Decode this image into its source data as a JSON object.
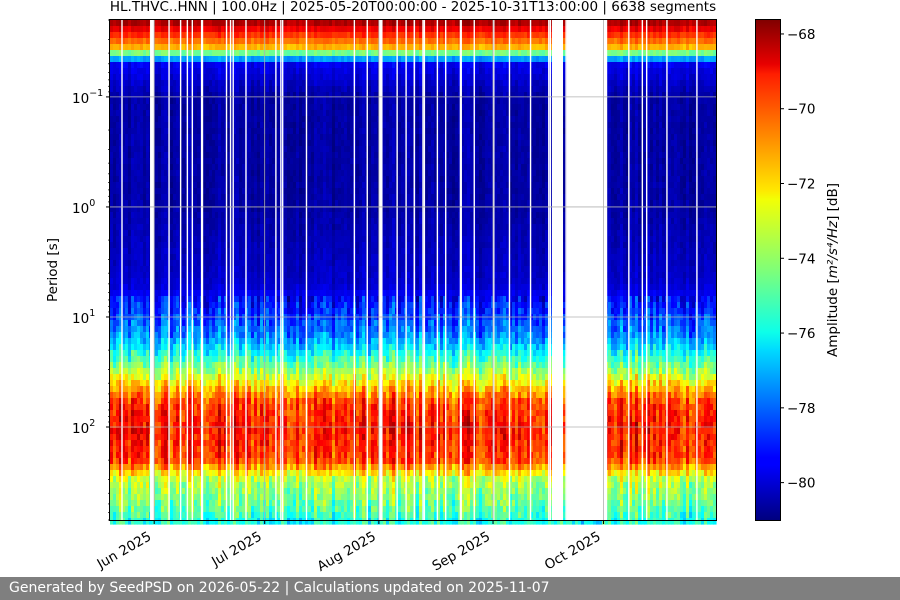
{
  "chart_data": {
    "type": "heatmap",
    "title": "HL.THVC..HNN | 100.0Hz | 2025-05-20T00:00:00 - 2025-10-31T13:00:00 | 6638 segments",
    "xlabel": "",
    "ylabel": "Period [s]",
    "x_range": [
      "2025-05-20",
      "2025-10-31"
    ],
    "y_range": [
      0.02,
      700
    ],
    "y_scale": "log",
    "y_inverted": true,
    "y_ticks": [
      {
        "value": 0.1,
        "base": "10",
        "exp": "−1"
      },
      {
        "value": 1,
        "base": "10",
        "exp": "0"
      },
      {
        "value": 10,
        "base": "10",
        "exp": "1"
      },
      {
        "value": 100,
        "base": "10",
        "exp": "2"
      }
    ],
    "x_ticks": [
      {
        "date": "2025-06-01",
        "label": "Jun 2025"
      },
      {
        "date": "2025-07-01",
        "label": "Jul 2025"
      },
      {
        "date": "2025-08-01",
        "label": "Aug 2025"
      },
      {
        "date": "2025-09-01",
        "label": "Sep 2025"
      },
      {
        "date": "2025-10-01",
        "label": "Oct 2025"
      }
    ],
    "grid": true,
    "colormap": "jet",
    "colorbar": {
      "label_prefix": "Amplitude [",
      "label_units": "m²/s⁴/Hz",
      "label_suffix": "] [dB]",
      "range": [
        -81,
        -67.6
      ],
      "ticks": [
        {
          "value": -68,
          "label": "−68"
        },
        {
          "value": -70,
          "label": "−70"
        },
        {
          "value": -72,
          "label": "−72"
        },
        {
          "value": -74,
          "label": "−74"
        },
        {
          "value": -76,
          "label": "−76"
        },
        {
          "value": -78,
          "label": "−78"
        },
        {
          "value": -80,
          "label": "−80"
        }
      ]
    },
    "amplitude_profile": {
      "period_s": [
        0.02,
        0.035,
        0.05,
        0.1,
        1,
        5,
        15,
        30,
        60,
        100,
        200,
        300,
        500,
        700
      ],
      "dB": [
        -67.8,
        -71.5,
        -79.5,
        -80.5,
        -80.5,
        -80,
        -77.5,
        -74,
        -70,
        -69.5,
        -70,
        -73.5,
        -74.5,
        -75.5
      ]
    },
    "data_gaps": [
      [
        "2025-05-31",
        "2025-06-01"
      ],
      [
        "2025-08-01",
        "2025-08-02"
      ],
      [
        "2025-09-17",
        "2025-09-20"
      ],
      [
        "2025-09-21",
        "2025-10-02"
      ]
    ],
    "segment_count": 6638
  },
  "footer": {
    "text": "Generated by SeedPSD on 2026-05-22 | Calculations updated on 2025-11-07"
  }
}
